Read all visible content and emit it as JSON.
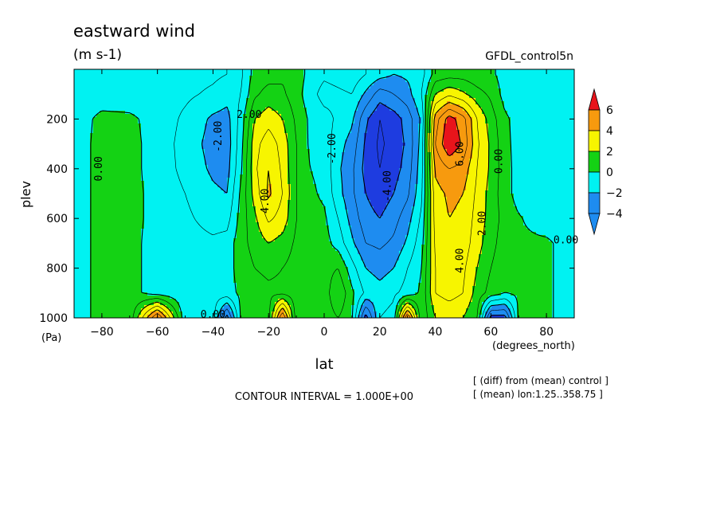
{
  "chart_data": {
    "type": "heatmap",
    "title": "eastward wind",
    "units": "(m s-1)",
    "dataset": "GFDL_control5n",
    "xlabel": "lat",
    "xunits": "(degrees_north)",
    "ylabel": "plev",
    "yunits": "(Pa)",
    "xlim": [
      -90,
      90
    ],
    "ylim": [
      0,
      1000
    ],
    "y_inverted": true,
    "x_ticks": [
      -80,
      -60,
      -40,
      -20,
      0,
      20,
      40,
      60,
      80
    ],
    "y_ticks": [
      200,
      400,
      600,
      800,
      1000
    ],
    "contour_interval_text": "CONTOUR INTERVAL = 1.000E+00",
    "notes": [
      "[ (diff) from (mean) control ]",
      "[ (mean) lon:1.25..358.75 ]"
    ],
    "colorbar": {
      "levels": [
        6,
        4,
        2,
        0,
        -2,
        -4
      ],
      "colors": [
        "#e8141b",
        "#f79a0e",
        "#f7f500",
        "#14d214",
        "#00f2f2",
        "#1e8cf0",
        "#1e3ce0"
      ]
    },
    "contour_labels": [
      {
        "text": "0.00",
        "lon": -80,
        "lev": 400
      },
      {
        "text": "2.00",
        "lon": -27,
        "lev": 195
      },
      {
        "text": "4.00",
        "lon": -20,
        "lev": 530
      },
      {
        "text": "-2.00",
        "lon": -37,
        "lev": 270
      },
      {
        "text": "-2.00",
        "lon": 4,
        "lev": 320
      },
      {
        "text": "-4.00",
        "lon": 24,
        "lev": 470
      },
      {
        "text": "6.00",
        "lon": 50,
        "lev": 340
      },
      {
        "text": "4.00",
        "lon": 50,
        "lev": 770
      },
      {
        "text": "2.00",
        "lon": 58,
        "lev": 620
      },
      {
        "text": "0.00",
        "lon": 64,
        "lev": 370
      },
      {
        "text": "0.00",
        "lon": 87,
        "lev": 700
      },
      {
        "text": "0.00",
        "lon": -40,
        "lev": 1000
      }
    ],
    "field_samples": {
      "lon": [
        -90,
        -80,
        -70,
        -60,
        -50,
        -40,
        -35,
        -30,
        -25,
        -20,
        -15,
        -10,
        -5,
        0,
        5,
        10,
        15,
        20,
        25,
        30,
        35,
        40,
        45,
        50,
        55,
        60,
        65,
        70,
        80,
        90
      ],
      "lev": [
        20,
        100,
        200,
        300,
        400,
        500,
        600,
        700,
        800,
        900,
        1000
      ],
      "u": [
        [
          -0.6,
          -0.6,
          -0.6,
          -0.5,
          -0.6,
          -0.8,
          -1.0,
          -1.2,
          0.4,
          0.6,
          0.8,
          0.6,
          -0.4,
          -0.8,
          -0.6,
          -0.4,
          -1.0,
          -1.6,
          -2.0,
          -1.8,
          -1.4,
          0.4,
          0.6,
          0.6,
          0.3,
          0.2,
          -0.4,
          -0.5,
          -0.6,
          -0.6
        ],
        [
          -0.6,
          -0.6,
          -0.6,
          -0.6,
          -0.8,
          -1.2,
          -1.6,
          -1.0,
          0.8,
          1.4,
          1.2,
          0.4,
          -0.6,
          -1.4,
          -1.2,
          -1.0,
          -2.2,
          -3.5,
          -3.0,
          -2.4,
          -1.0,
          2.0,
          2.8,
          2.2,
          1.4,
          0.8,
          -0.4,
          -0.6,
          -0.6,
          -0.6
        ],
        [
          -0.6,
          0.3,
          0.2,
          -0.4,
          -1.2,
          -2.2,
          -2.4,
          -0.6,
          2.0,
          2.6,
          2.0,
          0.8,
          -0.2,
          -0.6,
          -1.2,
          -1.8,
          -3.8,
          -5.0,
          -4.5,
          -3.6,
          -1.8,
          4.5,
          6.5,
          5.4,
          3.0,
          1.5,
          0.2,
          -0.4,
          -0.6,
          -0.6
        ],
        [
          -0.6,
          0.4,
          0.3,
          -0.4,
          -1.4,
          -2.4,
          -2.6,
          -0.4,
          2.6,
          3.6,
          2.6,
          1.0,
          -0.2,
          -0.4,
          -1.6,
          -2.4,
          -4.2,
          -5.2,
          -4.6,
          -3.8,
          -1.6,
          5.0,
          7.0,
          5.8,
          3.2,
          1.8,
          0.3,
          -0.4,
          -0.6,
          -0.6
        ],
        [
          -0.6,
          0.4,
          0.3,
          -0.4,
          -1.3,
          -2.2,
          -2.4,
          -0.2,
          2.8,
          4.0,
          2.8,
          1.0,
          0.0,
          -0.3,
          -1.8,
          -2.8,
          -4.4,
          -5.0,
          -4.4,
          -3.6,
          -1.4,
          4.2,
          5.0,
          4.6,
          3.0,
          1.8,
          0.4,
          -0.4,
          -0.6,
          -0.6
        ],
        [
          -0.6,
          0.4,
          0.3,
          -0.3,
          -1.0,
          -1.8,
          -2.0,
          0.2,
          2.4,
          4.2,
          3.0,
          1.0,
          0.2,
          -0.2,
          -1.6,
          -2.8,
          -4.0,
          -4.6,
          -4.0,
          -3.2,
          -1.2,
          3.6,
          4.2,
          4.0,
          2.8,
          1.6,
          0.4,
          -0.4,
          -0.6,
          -0.6
        ],
        [
          -0.6,
          0.4,
          0.3,
          -0.3,
          -0.8,
          -1.4,
          -1.4,
          0.4,
          1.8,
          3.2,
          2.6,
          1.0,
          0.4,
          0.2,
          -1.0,
          -2.4,
          -3.6,
          -4.0,
          -3.4,
          -2.4,
          -0.8,
          3.4,
          4.0,
          3.8,
          2.6,
          1.6,
          0.6,
          0.1,
          -0.6,
          -0.6
        ],
        [
          -0.6,
          0.4,
          0.3,
          -0.4,
          -0.6,
          -0.8,
          -0.6,
          0.6,
          1.4,
          2.0,
          1.6,
          0.8,
          0.4,
          0.4,
          -0.4,
          -1.8,
          -3.0,
          -3.2,
          -2.8,
          -1.8,
          -0.4,
          3.2,
          3.8,
          3.6,
          2.4,
          1.4,
          0.4,
          0.2,
          0.2,
          -0.6
        ],
        [
          -0.6,
          0.4,
          0.3,
          -0.4,
          -0.6,
          -0.6,
          -0.4,
          0.4,
          1.0,
          1.2,
          1.0,
          0.6,
          0.4,
          0.6,
          1.0,
          -0.6,
          -2.0,
          -2.4,
          -2.0,
          -1.0,
          0.0,
          3.0,
          3.6,
          3.2,
          2.0,
          1.0,
          0.2,
          0.2,
          0.2,
          -0.6
        ],
        [
          -0.6,
          0.4,
          0.3,
          -0.4,
          -0.8,
          -0.6,
          -0.4,
          0.2,
          0.6,
          0.8,
          0.8,
          0.4,
          0.2,
          0.4,
          2.0,
          0.2,
          -1.2,
          -1.6,
          -1.2,
          -0.6,
          0.2,
          3.0,
          3.4,
          3.0,
          1.6,
          0.6,
          0.0,
          0.2,
          0.2,
          -0.6
        ],
        [
          -0.6,
          0.4,
          0.3,
          6.2,
          -0.8,
          -0.6,
          -4.5,
          0.2,
          0.4,
          0.6,
          6.2,
          0.4,
          0.2,
          0.4,
          1.0,
          0.2,
          -4.5,
          -1.0,
          -0.6,
          6.2,
          0.2,
          2.0,
          2.2,
          2.0,
          1.0,
          -4.5,
          -4.5,
          0.2,
          0.2,
          -0.6
        ]
      ]
    }
  }
}
